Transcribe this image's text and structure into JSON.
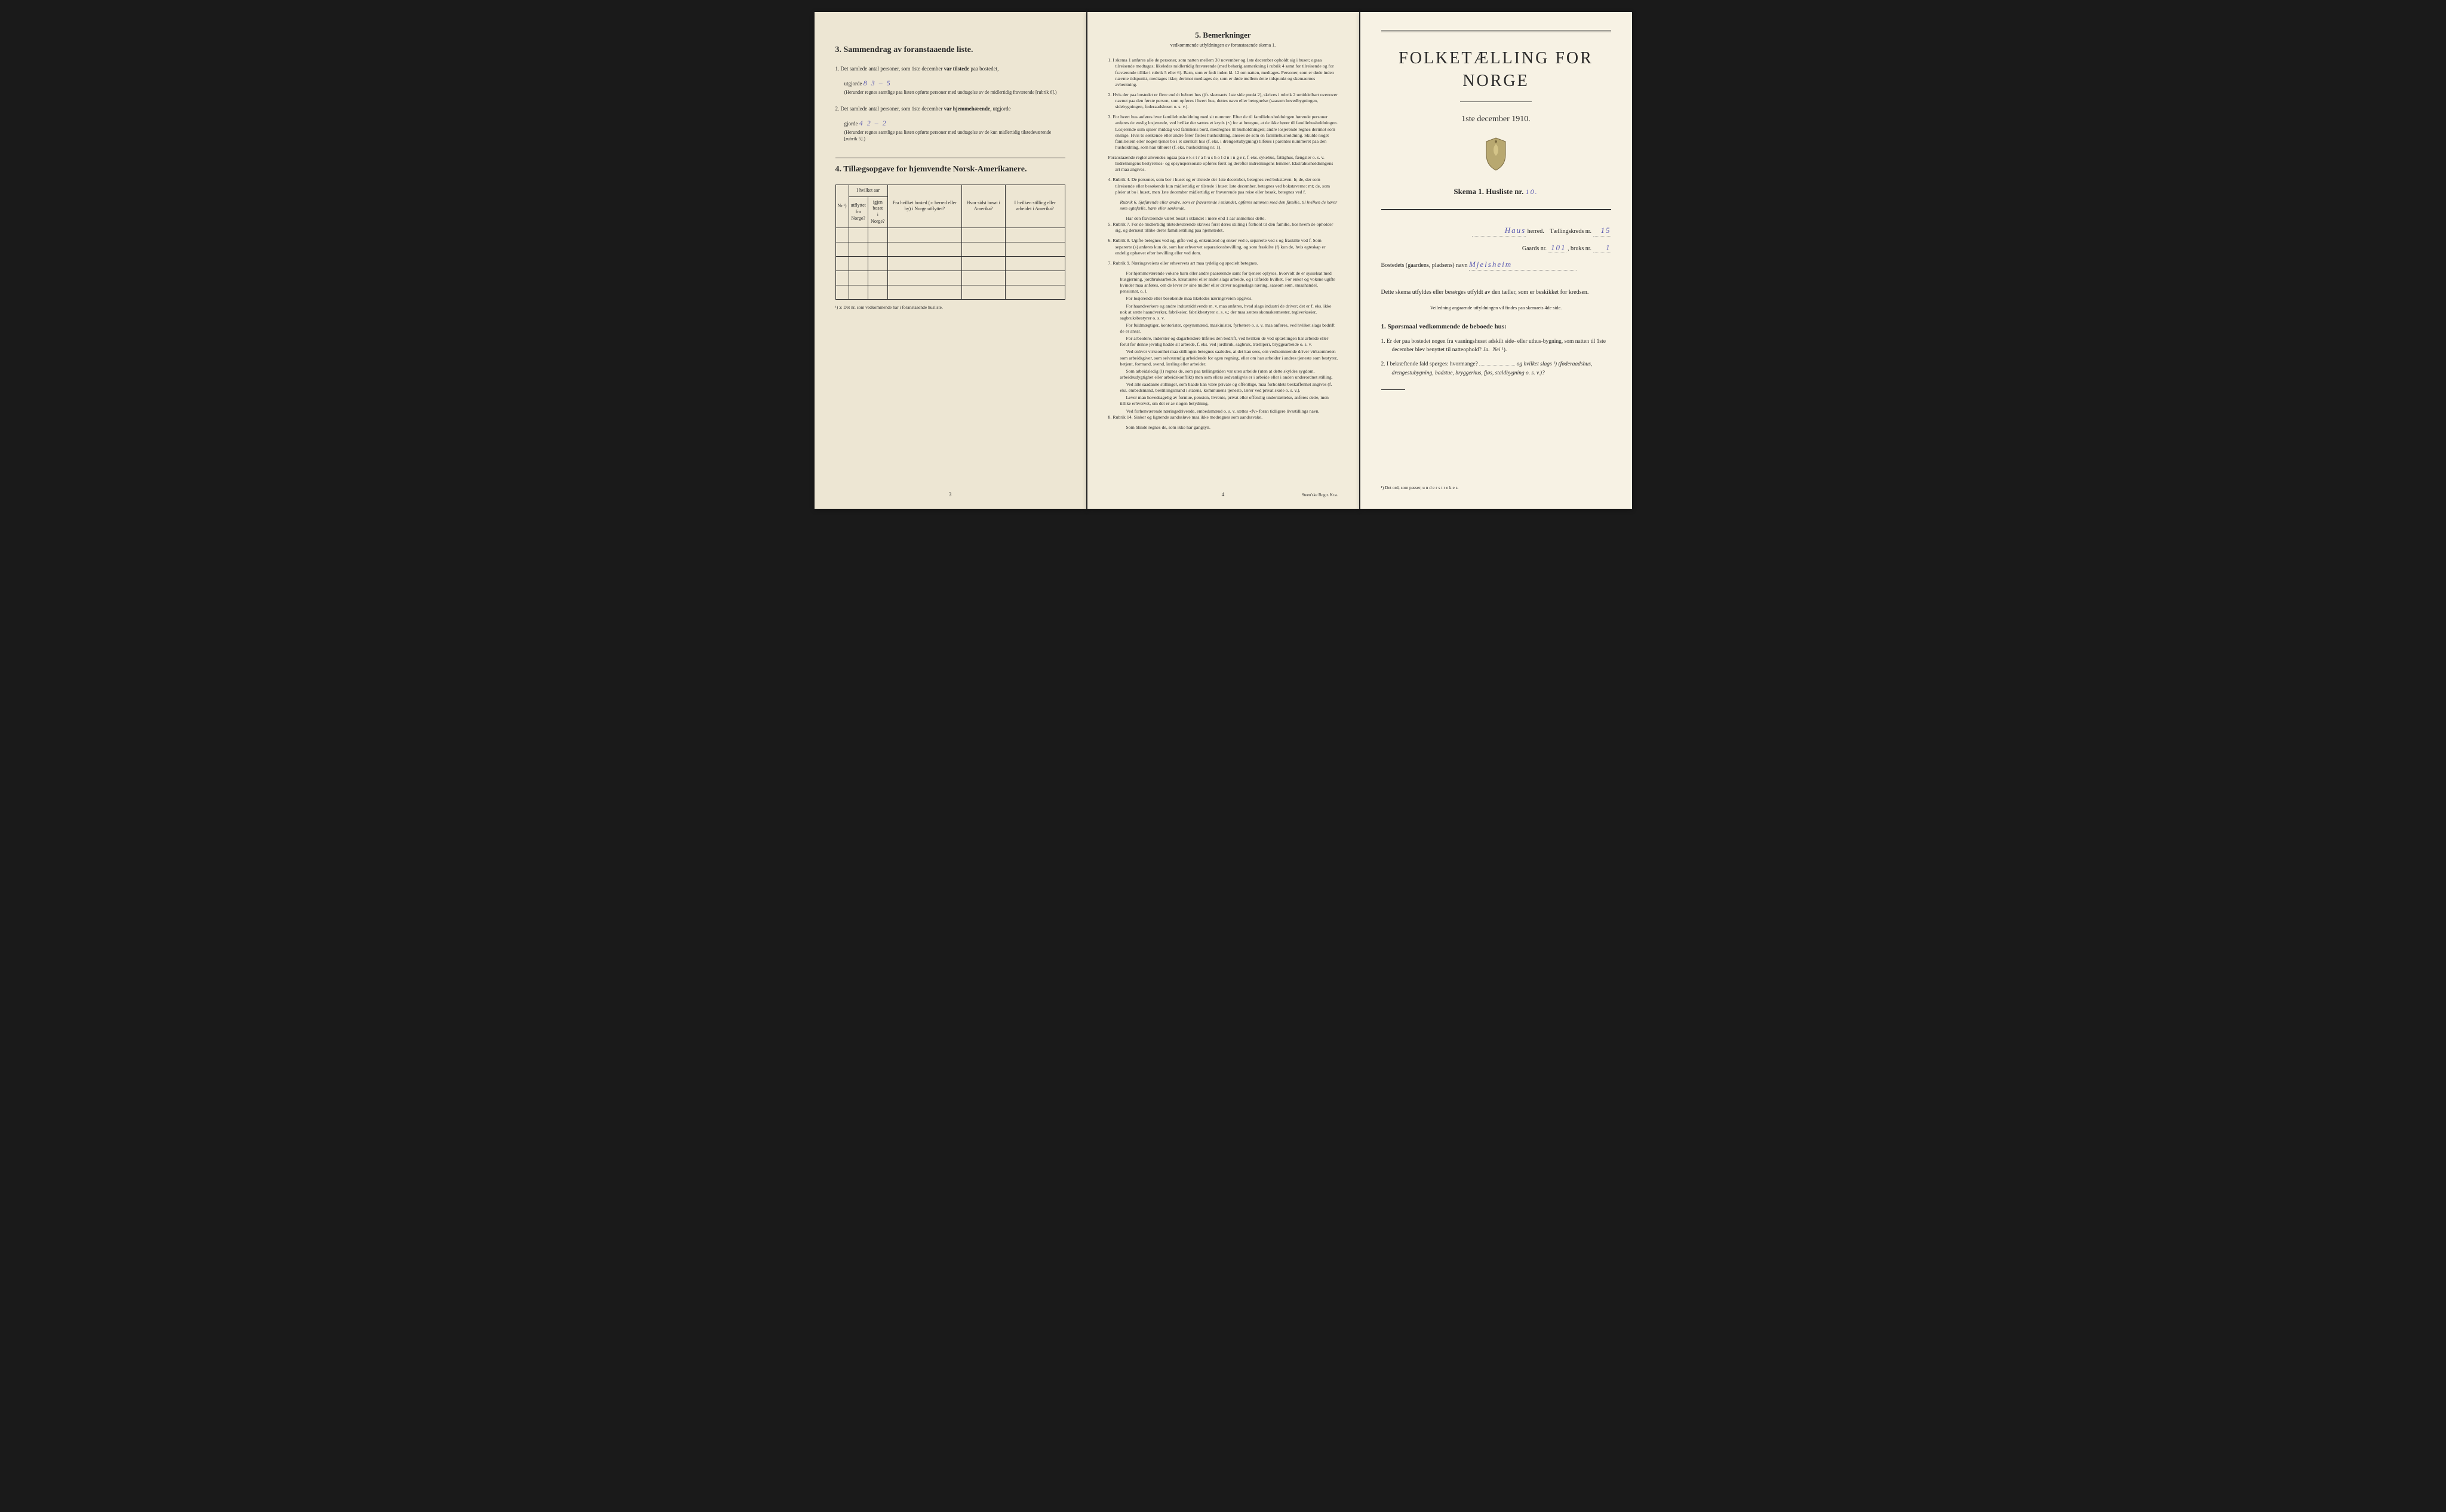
{
  "colors": {
    "paper_left": "#ede6d3",
    "paper_center": "#f2ecdb",
    "paper_right": "#f7f2e4",
    "ink": "#2a2a2a",
    "handwriting": "#5a5ab0",
    "background": "#1a1a1a"
  },
  "page_left": {
    "section3_title": "3.   Sammendrag av foranstaaende liste.",
    "item1_prefix": "1.  Det samlede antal personer, som 1ste december ",
    "item1_bold": "var tilstede",
    "item1_suffix": " paa bostedet,",
    "item1_line2_prefix": "utgjorde ",
    "item1_handwritten": "8   3 – 5",
    "item1_note": "(Herunder regnes samtlige paa listen opførte personer med undtagelse av de midlertidig fraværende [rubrik 6].)",
    "item2_prefix": "2.  Det samlede antal personer, som 1ste december ",
    "item2_bold": "var hjemmehørende",
    "item2_suffix": ", utgjorde ",
    "item2_handwritten": "4      2 – 2",
    "item2_note": "(Herunder regnes samtlige paa listen opførte personer med undtagelse av de kun midlertidig tilstedeværende [rubrik 5].)",
    "section4_title": "4.   Tillægsopgave for hjemvendte Norsk-Amerikanere.",
    "table": {
      "columns": [
        "Nr.¹)",
        "I hvilket aar utflyttet fra Norge?",
        "igjen bosat i Norge?",
        "Fra hvilket bosted (ɔ: herred eller by) i Norge utflyttet?",
        "Hvor sidst bosat i Amerika?",
        "I hvilken stilling eller arbeidet i Amerika?"
      ],
      "rows": 5,
      "merged_header": "I hvilket aar"
    },
    "table_footnote": "¹) ɔ: Det nr. som vedkommende har i foranstaaende husliste.",
    "page_number": "3"
  },
  "page_center": {
    "title": "5.   Bemerkninger",
    "subtitle": "vedkommende utfyldningen av foranstaaende skema 1.",
    "items": [
      {
        "n": "1.",
        "text": "I skema 1 anføres alle de personer, som natten mellem 30 november og 1ste december opholdt sig i huset; ogsaa tilreisende medtages; likeledes midlertidig fraværende (med behørig anmerkning i rubrik 4 samt for tilreisende og for fraværende tillike i rubrik 5 eller 6). Barn, som er født inden kl. 12 om natten, medtages. Personer, som er døde inden nævnte tidspunkt, medtages ikke; derimot medtages de, som er døde mellem dette tidspunkt og skemaernes avhentning."
      },
      {
        "n": "2.",
        "text": "Hvis der paa bostedet er flere end ét beboet hus (jfr. skemaets 1ste side punkt 2), skrives i rubrik 2 umiddelbart ovenover navnet paa den første person, som opføres i hvert hus, dettes navn eller betegnelse (saasom hovedbygningen, sidebygningen, føderaadshuset o. s. v.)."
      },
      {
        "n": "3.",
        "text": "For hvert hus anføres hver familiehusholdning med sit nummer. Efter de til familiehusholdningen hørende personer anføres de enslig losjerende, ved hvilke der sættes et kryds (×) for at betegne, at de ikke hører til familiehusholdningen. Losjerende som spiser middag ved familiens bord, medregnes til husholdningen; andre losjerende regnes derimot som enslige. Hvis to søskende eller andre fører fælles husholdning, ansees de som en familiehusholdning. Skulde noget familielem eller nogen tjener bo i et særskilt hus (f. eks. i drengestubygning) tilføies i parentes nummeret paa den husholdning, som han tilhører (f. eks. husholdning nr. 1)."
      },
      {
        "n": "",
        "text": "Foranstaaende regler anvendes ogsaa paa e k s t r a h u s h o l d n i n g e r, f. eks. sykehus, fattighus, fængsler o. s. v. Indretningens bestyrelses- og opsynspersonale opføres først og derefter indretningens lemmer. Ekstrahusholdningens art maa angives."
      },
      {
        "n": "4.",
        "text": "Rubrik 4. De personer, som bor i huset og er tilstede der 1ste december, betegnes ved bokstaven: b; de, der som tilreisende eller besøkende kun midlertidig er tilstede i huset 1ste december, betegnes ved bokstaverne: mt; de, som pleier at bo i huset, men 1ste december midlertidig er fraværende paa reise eller besøk, betegnes ved f."
      },
      {
        "n": "",
        "rubrik": true,
        "text": "Rubrik 6. Sjøfarende eller andre, som er fraværende i utlandet, opføres sammen med den familie, til hvilken de hører som egtefælle, barn eller søskende."
      },
      {
        "n": "",
        "indent": true,
        "text": "Har den fraværende været bosat i utlandet i mere end 1 aar anmerkes dette."
      },
      {
        "n": "5.",
        "text": "Rubrik 7. For de midlertidig tilstedeværende skrives først deres stilling i forhold til den familie, hos hvem de opholder sig, og dernæst tillike deres familiestilling paa hjemstedet."
      },
      {
        "n": "6.",
        "text": "Rubrik 8. Ugifte betegnes ved ug, gifte ved g, enkemænd og enker ved e, separerte ved s og fraskilte ved f. Som separerte (s) anføres kun de, som har erhvervet separationsbevilling, og som fraskilte (f) kun de, hvis egteskap er endelig ophævet efter bevilling eller ved dom."
      },
      {
        "n": "7.",
        "text": "Rubrik 9. Næringsveiens eller erhvervets art maa tydelig og specielt betegnes."
      },
      {
        "n": "",
        "indent": true,
        "text": "For hjemmeværende voksne barn eller andre paarørende samt for tjenere oplyses, hvorvidt de er sysselsat med husgjerning, jordbruksarbeide, kreaturstel eller andet slags arbeide, og i tilfælde hvilket. For enker og voksne ugifte kvinder maa anføres, om de lever av sine midler eller driver nogenslags næring, saasom søm, smaahandel, pensionat, o. l."
      },
      {
        "n": "",
        "indent": true,
        "text": "For losjerende eller besøkende maa likeledes næringsveien opgives."
      },
      {
        "n": "",
        "indent": true,
        "text": "For haandverkere og andre industridrivende m. v. maa anføres, hvad slags industri de driver; det er f. eks. ikke nok at sætte haandverker, fabrikeier, fabrikbestyrer o. s. v.; der maa sættes skomakermester, teglverkseier, sagbruksbestyrer o. s. v."
      },
      {
        "n": "",
        "indent": true,
        "text": "For fuldmægtiger, kontorister, opsynsmænd, maskinister, fyrbøtere o. s. v. maa anføres, ved hvilket slags bedrift de er ansat."
      },
      {
        "n": "",
        "indent": true,
        "text": "For arbeidere, inderster og dagarbeidere tilføies den bedrift, ved hvilken de ved optællingen har arbeide eller forut for denne jevnlig hadde sit arbeide, f. eks. ved jordbruk, sagbruk, trælliperi, bryggearbeide o. s. v."
      },
      {
        "n": "",
        "indent": true,
        "text": "Ved enhver virksomhet maa stillingen betegnes saaledes, at det kan sees, om vedkommende driver virksomheten som arbeidsgiver, som selvstændig arbeidende for egen regning, eller om han arbeider i andres tjeneste som bestyrer, betjent, formand, svend, lærling eller arbeider."
      },
      {
        "n": "",
        "indent": true,
        "text": "Som arbeidsledig (l) regnes de, som paa tællingstiden var uten arbeide (uten at dette skyldes sygdom, arbeidsudygtighet eller arbeidskonflikt) men som ellers sedvanligvis er i arbeide eller i anden underordnet stilling."
      },
      {
        "n": "",
        "indent": true,
        "text": "Ved alle saadanne stillinger, som baade kan være private og offentlige, maa forholdets beskaffenhet angives (f. eks. embedsmand, bestillingsmand i statens, kommunens tjeneste, lærer ved privat skole o. s. v.)."
      },
      {
        "n": "",
        "indent": true,
        "text": "Lever man hovedsagelig av formue, pension, livrente, privat eller offentlig understøttelse, anføres dette, men tillike erhvervet, om det er av nogen betydning."
      },
      {
        "n": "",
        "indent": true,
        "text": "Ved forhenværende næringsdrivende, embedsmænd o. s. v. sættes «fv» foran tidligere livsstillings navn."
      },
      {
        "n": "8.",
        "text": "Rubrik 14. Sinker og lignende aandssløve maa ikke medregnes som aandssvake."
      },
      {
        "n": "",
        "indent": true,
        "text": "Som blinde regnes de, som ikke har gangsyn."
      }
    ],
    "page_number": "4",
    "printer": "Steen'ske Bogtr. Kr.a."
  },
  "page_right": {
    "main_title": "FOLKETÆLLING FOR NORGE",
    "main_subtitle": "1ste december 1910.",
    "skema_label": "Skema 1.   Husliste nr.",
    "skema_value": "10.",
    "herred_value": "Haus",
    "herred_label": "herred.",
    "kreds_label": "Tællingskreds nr.",
    "kreds_value": "15",
    "gaards_label": "Gaards nr.",
    "gaards_value": "101",
    "bruks_label": ", bruks nr.",
    "bruks_value": "1",
    "bosted_label": "Bostedets (gaardens, pladsens) navn",
    "bosted_value": "Mjelsheim",
    "intro": "Dette skema utfyldes eller besørges utfyldt av den tæller, som er beskikket for kredsen.",
    "intro_sub": "Veiledning angaaende utfyldningen vil findes paa skemaets 4de side.",
    "q_heading": "1. Spørsmaal vedkommende de beboede hus:",
    "q1": "1.  Er der paa bostedet nogen fra vaaningshuset adskilt side- eller uthus-bygning, som natten til 1ste december blev benyttet til natteophold?   ",
    "q1_ja": "Ja.",
    "q1_nei": "Nei",
    "q1_sup": " ¹).",
    "q2": "2.  I bekræftende fald spørges: hvormange? ",
    "q2_suffix": "og hvilket slags ¹) (føderaadshus, drengestubygning, badstue, bryggerhus, fjøs, staldbygning o. s. v.)?",
    "footnote": "¹) Det ord, som passer, u n d e r s t r e k e s."
  }
}
